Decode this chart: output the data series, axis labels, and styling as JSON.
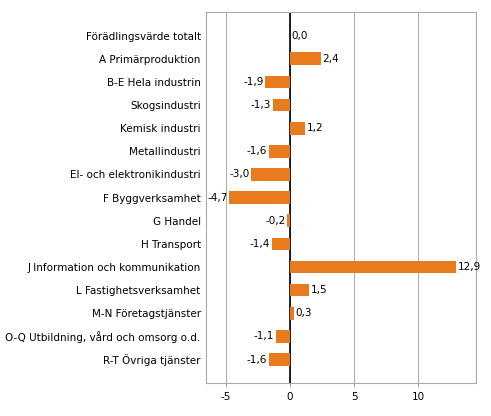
{
  "categories": [
    "Förädlingsvärde totalt",
    "A Primärproduktion",
    "B-E Hela industrin",
    "Skogsindustri",
    "Kemisk industri",
    "Metallindustri",
    "El- och elektronikindustri",
    "F Byggverksamhet",
    "G Handel",
    "H Transport",
    "J Information och kommunikation",
    "L Fastighetsverksamhet",
    "M-N Företagstjänster",
    "O-Q Utbildning, vård och omsorg o.d.",
    "R-T Övriga tjänster"
  ],
  "values": [
    0.0,
    2.4,
    -1.9,
    -1.3,
    1.2,
    -1.6,
    -3.0,
    -4.7,
    -0.2,
    -1.4,
    12.9,
    1.5,
    0.3,
    -1.1,
    -1.6
  ],
  "bar_color": "#E87B1E",
  "xlim": [
    -6.5,
    14.5
  ],
  "xticks": [
    -5,
    0,
    5,
    10
  ],
  "grid_color": "#aaaaaa",
  "label_fontsize": 7.5,
  "value_fontsize": 7.5,
  "bar_height": 0.55
}
